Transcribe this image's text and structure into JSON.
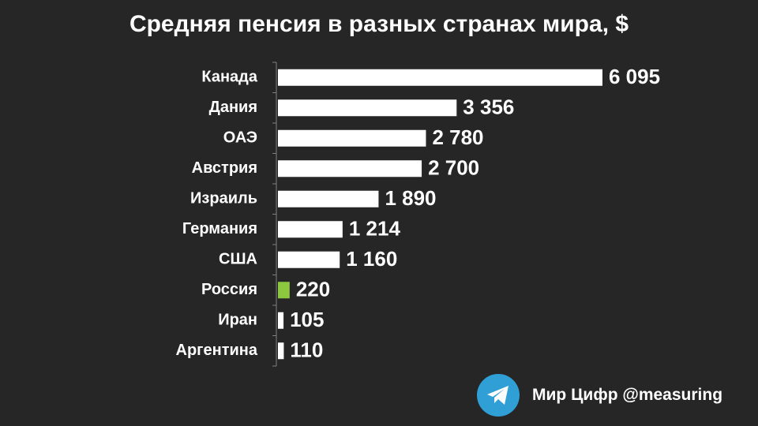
{
  "chart_data": {
    "type": "bar",
    "orientation": "horizontal",
    "title": "Средняя пенсия в разных странах мира, $",
    "categories": [
      "Канада",
      "Дания",
      "ОАЭ",
      "Австрия",
      "Израиль",
      "Германия",
      "США",
      "Россия",
      "Иран",
      "Аргентина"
    ],
    "values": [
      6095,
      3356,
      2780,
      2700,
      1890,
      1214,
      1160,
      220,
      105,
      110
    ],
    "value_labels": [
      "6 095",
      "3 356",
      "2 780",
      "2 700",
      "1 890",
      "1 214",
      "1 160",
      "220",
      "105",
      "110"
    ],
    "highlight_category": "Россия",
    "xlim": [
      0,
      6095
    ],
    "grid": false,
    "legend": "none"
  },
  "colors": {
    "background": "#262626",
    "bar": "#ffffff",
    "highlight": "#8dc63f",
    "text": "#ffffff",
    "telegram": "#2f9fd6"
  },
  "branding": {
    "icon": "telegram-icon",
    "text": "Мир Цифр @measuring"
  }
}
